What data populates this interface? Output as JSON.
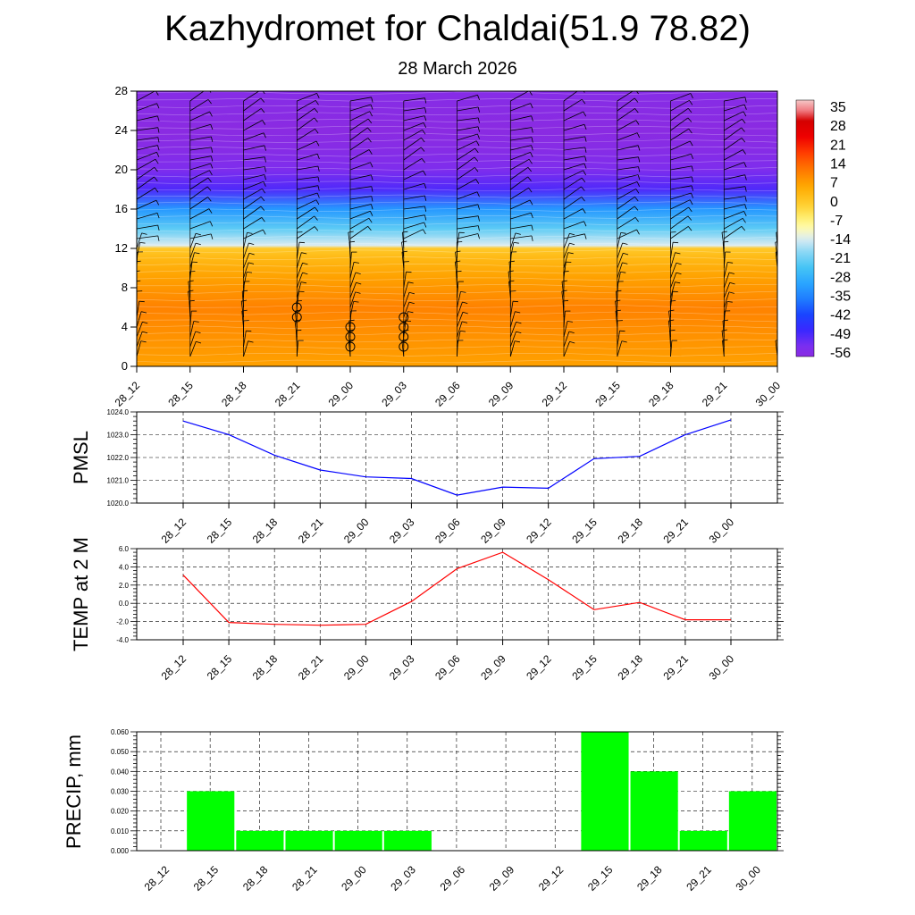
{
  "title": "Kazhydromet for Chaldai(51.9 78.82)",
  "subtitle": "28 March 2026",
  "time_labels": [
    "28_12",
    "28_15",
    "28_18",
    "28_21",
    "29_00",
    "29_03",
    "29_06",
    "29_09",
    "29_12",
    "29_15",
    "29_18",
    "29_21",
    "30_00"
  ],
  "chart_data": [
    {
      "type": "heatmap",
      "title": "Kazhydromet for Chaldai(51.9 78.82)",
      "subtitle": "28 March 2026",
      "x": [
        "28_12",
        "28_15",
        "28_18",
        "28_21",
        "29_00",
        "29_03",
        "29_06",
        "29_09",
        "29_12",
        "29_15",
        "29_18",
        "29_21",
        "30_00"
      ],
      "yticks": [
        0,
        4,
        8,
        12,
        16,
        20,
        24,
        28
      ],
      "ylim": [
        0,
        28
      ],
      "colorbar_labels": [
        35,
        28,
        21,
        14,
        7,
        0,
        -7,
        -14,
        -21,
        -28,
        -35,
        -42,
        -49,
        -56
      ],
      "colorbar_range": [
        -60,
        38
      ],
      "temperature_profile": [
        {
          "level": 0,
          "value": 6
        },
        {
          "level": 3,
          "value": 8
        },
        {
          "level": 6,
          "value": 10
        },
        {
          "level": 9,
          "value": 6
        },
        {
          "level": 11,
          "value": 2
        },
        {
          "level": 12,
          "value": -1
        },
        {
          "level": 12.3,
          "value": -15
        },
        {
          "level": 14,
          "value": -24
        },
        {
          "level": 16,
          "value": -34
        },
        {
          "level": 18,
          "value": -52
        },
        {
          "level": 20,
          "value": -57
        },
        {
          "level": 22,
          "value": -59
        },
        {
          "level": 24,
          "value": -60
        },
        {
          "level": 28,
          "value": -59
        }
      ],
      "precip_markers": [
        {
          "time": "28_21",
          "levels": [
            5,
            6
          ]
        },
        {
          "time": "29_00",
          "levels": [
            2,
            3,
            4
          ]
        },
        {
          "time": "29_03",
          "levels": [
            2,
            3,
            4,
            5
          ]
        }
      ],
      "wind_barbs": "shown at every time step and ~1 km interval",
      "colors": {
        "warm": "#f5a700",
        "orange": "#ff8c00",
        "cold": "#1f3cff",
        "violet": "#8f36f4"
      }
    },
    {
      "type": "line",
      "ylabel": "PMSL",
      "x": [
        "28_12",
        "28_15",
        "28_18",
        "28_21",
        "29_00",
        "29_03",
        "29_06",
        "29_09",
        "29_12",
        "29_15",
        "29_18",
        "29_21",
        "30_00"
      ],
      "series": [
        {
          "values": [
            1023.6,
            1023.0,
            1022.1,
            1021.45,
            1021.15,
            1021.08,
            1020.35,
            1020.7,
            1020.65,
            1021.95,
            1022.05,
            1023.0,
            1023.65
          ]
        }
      ],
      "yticks": [
        "1024.0",
        "1023.0",
        "1022.0",
        "1021.0",
        "1020.0"
      ],
      "ylim": [
        1020.0,
        1024.0
      ],
      "grid": true,
      "color": "#0000ff"
    },
    {
      "type": "line",
      "ylabel": "TEMP at 2 M",
      "x": [
        "28_12",
        "28_15",
        "28_18",
        "28_21",
        "29_00",
        "29_03",
        "29_06",
        "29_09",
        "29_12",
        "29_15",
        "29_18",
        "29_21",
        "30_00"
      ],
      "series": [
        {
          "values": [
            3.1,
            -2.1,
            -2.3,
            -2.4,
            -2.3,
            0.2,
            3.8,
            5.6,
            2.6,
            -0.7,
            0.1,
            -1.8,
            -1.8
          ]
        }
      ],
      "yticks": [
        "6.0",
        "4.0",
        "2.0",
        "0.0",
        "-2.0",
        "-4.0"
      ],
      "ylim": [
        -4.0,
        6.0
      ],
      "grid": true,
      "color": "#ff0000"
    },
    {
      "type": "bar",
      "ylabel": "PRECIP, mm",
      "categories": [
        "28_12",
        "28_15",
        "28_18",
        "28_21",
        "29_00",
        "29_03",
        "29_06",
        "29_09",
        "29_12",
        "29_15",
        "29_18",
        "29_21",
        "30_00"
      ],
      "values": [
        0,
        0.03,
        0.01,
        0.01,
        0.01,
        0.01,
        0,
        0,
        0,
        0.06,
        0.04,
        0.01,
        0.03
      ],
      "yticks": [
        "0.060",
        "0.050",
        "0.040",
        "0.030",
        "0.020",
        "0.010",
        "0.000"
      ],
      "ylim": [
        0,
        0.06
      ],
      "grid": true,
      "color": "#00ff00"
    }
  ]
}
